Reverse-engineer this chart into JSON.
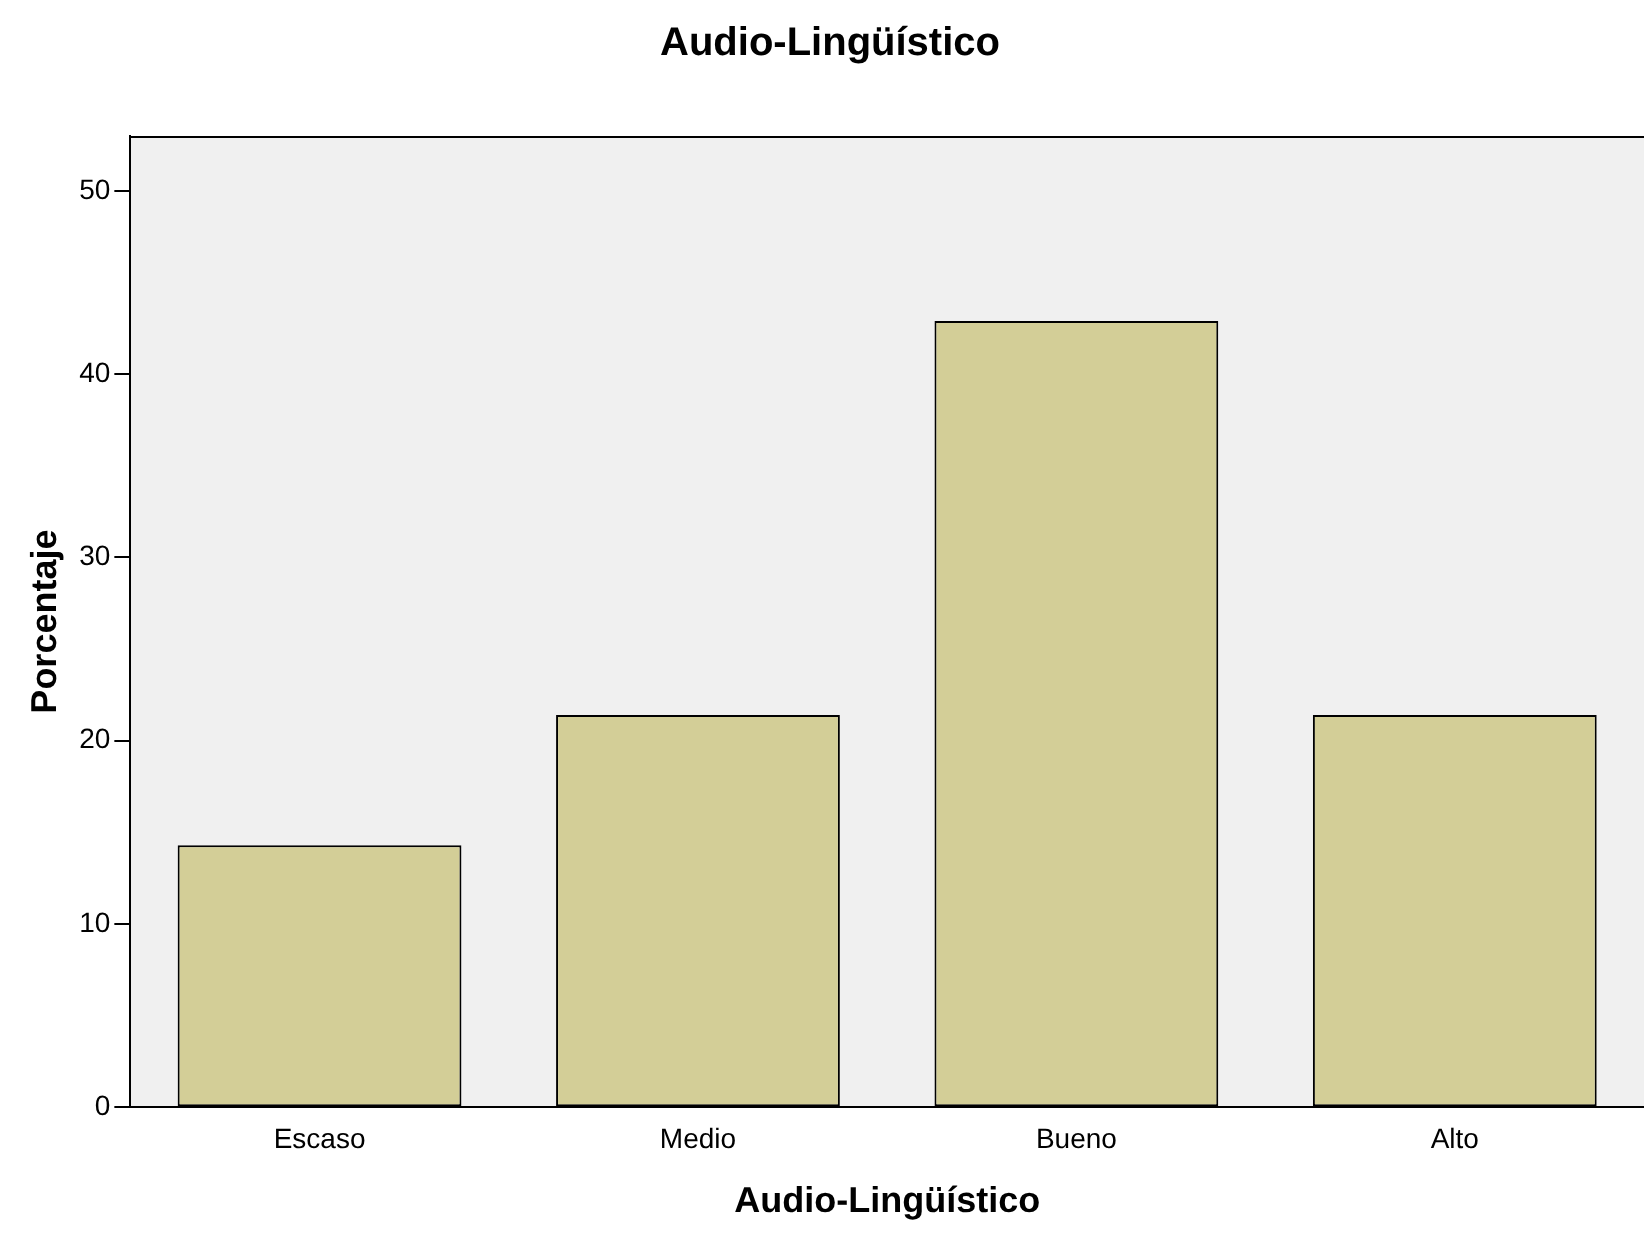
{
  "chart_data": {
    "type": "bar",
    "title": "Audio-Lingüístico",
    "xlabel": "Audio-Lingüístico",
    "ylabel": "Porcentaje",
    "categories": [
      "Escaso",
      "Medio",
      "Bueno",
      "Alto"
    ],
    "values": [
      14.3,
      21.4,
      42.9,
      21.4
    ],
    "color": "#d3ce97",
    "ylim": [
      0,
      53
    ],
    "yticks": [
      0,
      10,
      20,
      30,
      40,
      50
    ],
    "grid": false,
    "legend": false
  }
}
